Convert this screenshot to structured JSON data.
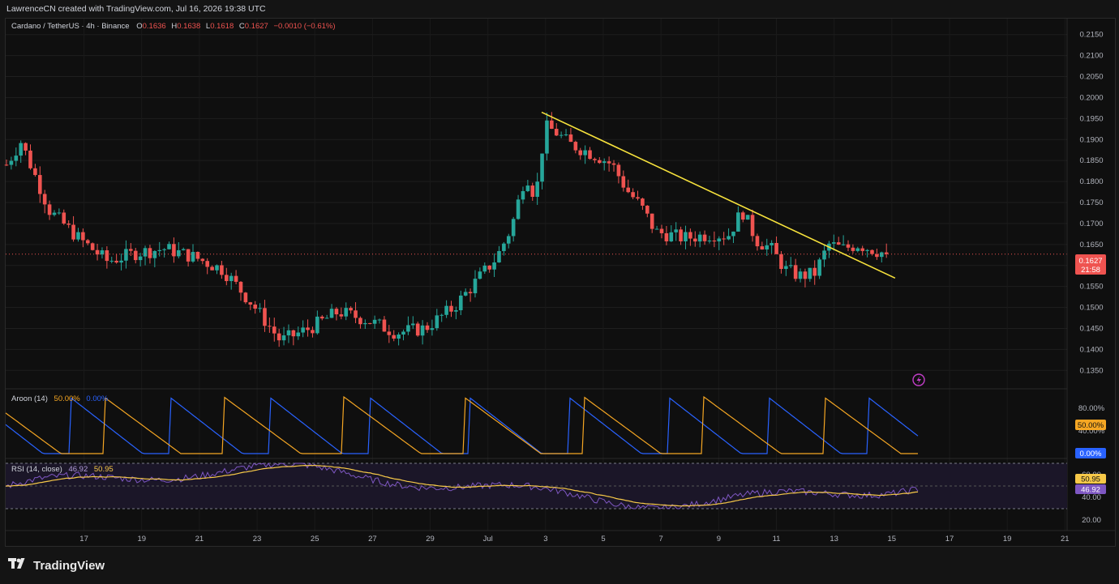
{
  "header": {
    "attribution": "LawrenceCN created with TradingView.com, Jul 16, 2026 19:38 UTC"
  },
  "legend": {
    "symbol": "Cardano / TetherUS · 4h · Binance",
    "o_label": "O",
    "o": "0.1636",
    "h_label": "H",
    "h": "0.1638",
    "l_label": "L",
    "l": "0.1618",
    "c_label": "C",
    "c": "0.1627",
    "change": "−0.0010 (−0.61%)"
  },
  "price_badge": {
    "price": "0.1627",
    "countdown": "21:58"
  },
  "aroon": {
    "title": "Aroon (14)",
    "up_value": "50.00%",
    "down_value": "0.00%",
    "axis_labels": [
      "80.00%",
      "40.00%"
    ],
    "up_color": "#f5a623",
    "down_color": "#2962ff"
  },
  "rsi": {
    "title": "RSI (14, close)",
    "rsi_value": "46.92",
    "ma_value": "50.95",
    "axis_labels": [
      "60.00",
      "40.00",
      "20.00"
    ],
    "rsi_color": "#7e57c2",
    "ma_color": "#f7c948"
  },
  "colors": {
    "up": "#26a69a",
    "down": "#ef5350",
    "trendline": "#f7e23c"
  },
  "footer": {
    "brand": "TradingView",
    "logo_icon": "tradingview-logo-icon"
  },
  "chart_data": {
    "type": "candlestick",
    "symbol": "Cardano / TetherUS",
    "interval": "4h",
    "exchange": "Binance",
    "y_ticks": [
      0.215,
      0.21,
      0.205,
      0.2,
      0.195,
      0.19,
      0.185,
      0.18,
      0.175,
      0.17,
      0.165,
      0.16,
      0.155,
      0.15,
      0.145,
      0.14,
      0.135
    ],
    "ylim": [
      0.1312,
      0.2188
    ],
    "x_ticks": [
      "17",
      "19",
      "21",
      "23",
      "25",
      "27",
      "29",
      "Jul",
      "3",
      "5",
      "7",
      "9",
      "11",
      "13",
      "15",
      "17",
      "19",
      "21"
    ],
    "key_closes": [
      {
        "date": "Jun 16",
        "close": 0.184
      },
      {
        "date": "Jun 16",
        "close": 0.1895
      },
      {
        "date": "Jun 17",
        "close": 0.173
      },
      {
        "date": "Jun 18",
        "close": 0.1665
      },
      {
        "date": "Jun 19",
        "close": 0.161
      },
      {
        "date": "Jun 20",
        "close": 0.163
      },
      {
        "date": "Jun 21",
        "close": 0.164
      },
      {
        "date": "Jun 22",
        "close": 0.162
      },
      {
        "date": "Jun 23",
        "close": 0.159
      },
      {
        "date": "Jun 24",
        "close": 0.151
      },
      {
        "date": "Jun 25",
        "close": 0.142
      },
      {
        "date": "Jun 26",
        "close": 0.145
      },
      {
        "date": "Jun 27",
        "close": 0.149
      },
      {
        "date": "Jun 28",
        "close": 0.147
      },
      {
        "date": "Jun 29",
        "close": 0.144
      },
      {
        "date": "Jun 30",
        "close": 0.145
      },
      {
        "date": "Jul 1",
        "close": 0.15
      },
      {
        "date": "Jul 2",
        "close": 0.158
      },
      {
        "date": "Jul 3",
        "close": 0.162
      },
      {
        "date": "Jul 3",
        "close": 0.169
      },
      {
        "date": "Jul 4",
        "close": 0.182
      },
      {
        "date": "Jul 4",
        "close": 0.176
      },
      {
        "date": "Jul 4",
        "close": 0.193
      },
      {
        "date": "Jul 5",
        "close": 0.192
      },
      {
        "date": "Jul 5",
        "close": 0.189
      },
      {
        "date": "Jul 6",
        "close": 0.186
      },
      {
        "date": "Jul 7",
        "close": 0.184
      },
      {
        "date": "Jul 7",
        "close": 0.178
      },
      {
        "date": "Jul 8",
        "close": 0.174
      },
      {
        "date": "Jul 8",
        "close": 0.168
      },
      {
        "date": "Jul 9",
        "close": 0.1665
      },
      {
        "date": "Jul 10",
        "close": 0.1675
      },
      {
        "date": "Jul 11",
        "close": 0.167
      },
      {
        "date": "Jul 11",
        "close": 0.173
      },
      {
        "date": "Jul 12",
        "close": 0.166
      },
      {
        "date": "Jul 12",
        "close": 0.164
      },
      {
        "date": "Jul 13",
        "close": 0.159
      },
      {
        "date": "Jul 13",
        "close": 0.1575
      },
      {
        "date": "Jul 14",
        "close": 0.158
      },
      {
        "date": "Jul 14",
        "close": 0.165
      },
      {
        "date": "Jul 15",
        "close": 0.164
      },
      {
        "date": "Jul 15",
        "close": 0.165
      },
      {
        "date": "Jul 16",
        "close": 0.1627
      }
    ],
    "trendline": {
      "from": {
        "date": "Jul 4",
        "price": 0.1965
      },
      "to": {
        "date": "Jul 16",
        "price": 0.157
      }
    },
    "current_price": 0.1627
  }
}
